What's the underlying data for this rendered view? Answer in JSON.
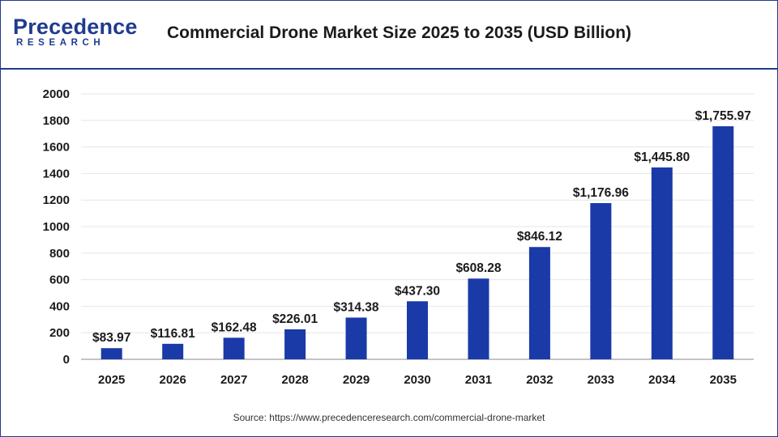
{
  "header": {
    "logo_main": "Precedence",
    "logo_sub": "RESEARCH",
    "title": "Commercial Drone Market Size 2025 to 2035 (USD Billion)"
  },
  "source": "Source: https://www.precedenceresearch.com/commercial-drone-market",
  "colors": {
    "bar": "#1a3aa8",
    "brand": "#1f3b8f",
    "grid": "#e6e6e6"
  },
  "chart_data": {
    "type": "bar",
    "categories": [
      "2025",
      "2026",
      "2027",
      "2028",
      "2029",
      "2030",
      "2031",
      "2032",
      "2033",
      "2034",
      "2035"
    ],
    "values": [
      83.97,
      116.81,
      162.48,
      226.01,
      314.38,
      437.3,
      608.28,
      846.12,
      1176.96,
      1445.8,
      1755.97
    ],
    "labels": [
      "$83.97",
      "$116.81",
      "$162.48",
      "$226.01",
      "$314.38",
      "$437.30",
      "$608.28",
      "$846.12",
      "$1,176.96",
      "$1,445.80",
      "$1,755.97"
    ],
    "title": "Commercial Drone Market Size 2025 to 2035 (USD Billion)",
    "xlabel": "",
    "ylabel": "",
    "ylim": [
      0,
      2000
    ],
    "yticks": [
      0,
      200,
      400,
      600,
      800,
      1000,
      1200,
      1400,
      1600,
      1800,
      2000
    ],
    "grid": true,
    "legend": "none"
  }
}
